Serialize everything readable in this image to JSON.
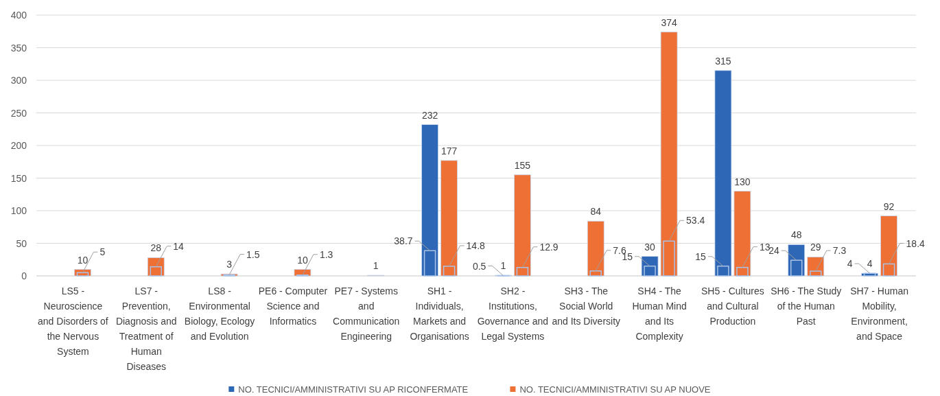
{
  "chart_data": {
    "type": "bar",
    "categories": [
      "LS5 - Neuroscience and Disorders of the Nervous System",
      "LS7 - Prevention, Diagnosis and Treatment of Human Diseases",
      "LS8 - Environmental Biology, Ecology and Evolution",
      "PE6 - Computer Science and Informatics",
      "PE7 - Systems and Communication Engineering",
      "SH1 - Individuals, Markets and Organisations",
      "SH2 - Institutions, Governance and Legal Systems",
      "SH3 - The Social World and Its Diversity",
      "SH4 - The Human Mind and Its Complexity",
      "SH5 - Cultures and Cultural Production",
      "SH6 - The Study of the Human Past",
      "SH7 - Human Mobility, Environment, and Space"
    ],
    "series": [
      {
        "name": "NO. TECNICI/AMMINISTRATIVI SU AP RICONFERMATE",
        "color": "#2e67b5",
        "values": [
          null,
          null,
          null,
          null,
          null,
          232,
          1,
          null,
          30,
          315,
          48,
          4
        ]
      },
      {
        "name": "NO. TECNICI/AMMINISTRATIVI SU AP NUOVE",
        "color": "#ef7035",
        "values": [
          10,
          28,
          3,
          10,
          1,
          177,
          155,
          84,
          374,
          130,
          29,
          92
        ]
      },
      {
        "color": "#2e67b5",
        "values": [
          null,
          null,
          null,
          null,
          null,
          38.7,
          0.5,
          null,
          15,
          15,
          24,
          4
        ]
      },
      {
        "color": "#ef7035",
        "values": [
          5,
          14,
          1.5,
          1.3,
          null,
          14.8,
          12.9,
          7.6,
          53.4,
          13,
          7.3,
          18.4
        ]
      }
    ],
    "ylim": [
      0,
      400
    ],
    "yticks": [
      0,
      50,
      100,
      150,
      200,
      250,
      300,
      350,
      400
    ],
    "grid": "y",
    "legend": "bottom",
    "data_labels": true
  }
}
